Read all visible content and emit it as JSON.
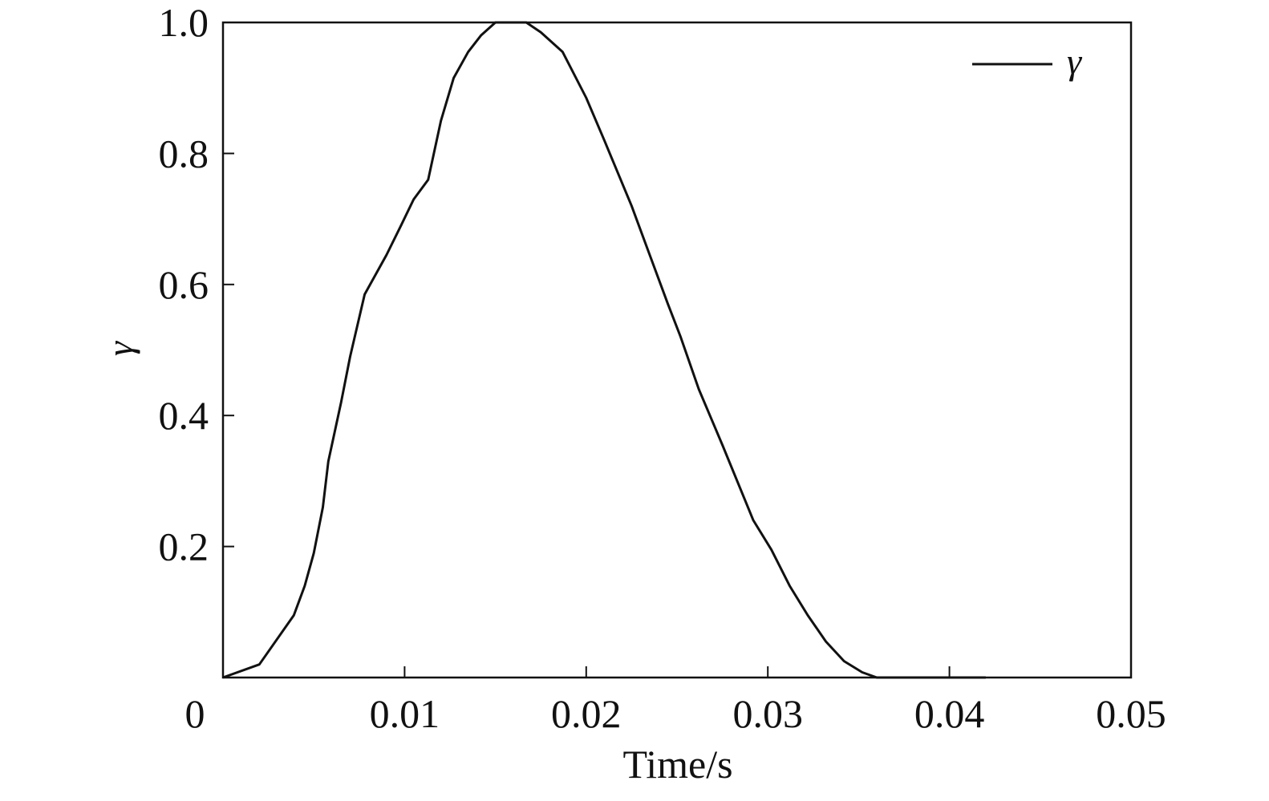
{
  "chart_data": {
    "type": "line",
    "title": "",
    "xlabel": "Time/s",
    "ylabel": "γ",
    "xlim": [
      0,
      0.05
    ],
    "ylim": [
      0,
      1.0
    ],
    "x_ticks": [
      0.01,
      0.02,
      0.03,
      0.04,
      0.05
    ],
    "x_tick_labels": [
      "0.01",
      "0.02",
      "0.03",
      "0.04",
      "0.05"
    ],
    "x_origin_label": "0",
    "y_ticks": [
      0.2,
      0.4,
      0.6,
      0.8,
      1.0
    ],
    "y_tick_labels": [
      "0.2",
      "0.4",
      "0.6",
      "0.8",
      "1.0"
    ],
    "grid": false,
    "legend_position": "top-right",
    "series": [
      {
        "name": "γ",
        "color": "#111111",
        "points": [
          [
            0.0,
            0.0
          ],
          [
            0.002,
            0.02
          ],
          [
            0.0039,
            0.095
          ],
          [
            0.0045,
            0.14
          ],
          [
            0.005,
            0.19
          ],
          [
            0.0055,
            0.26
          ],
          [
            0.0058,
            0.33
          ],
          [
            0.0065,
            0.42
          ],
          [
            0.007,
            0.49
          ],
          [
            0.0078,
            0.585
          ],
          [
            0.009,
            0.645
          ],
          [
            0.0098,
            0.69
          ],
          [
            0.0105,
            0.73
          ],
          [
            0.0113,
            0.76
          ],
          [
            0.012,
            0.85
          ],
          [
            0.0127,
            0.915
          ],
          [
            0.0135,
            0.955
          ],
          [
            0.0142,
            0.98
          ],
          [
            0.015,
            1.0
          ],
          [
            0.0167,
            1.0
          ],
          [
            0.0175,
            0.985
          ],
          [
            0.0187,
            0.955
          ],
          [
            0.02,
            0.885
          ],
          [
            0.021,
            0.82
          ],
          [
            0.0225,
            0.72
          ],
          [
            0.0235,
            0.645
          ],
          [
            0.0245,
            0.57
          ],
          [
            0.0252,
            0.52
          ],
          [
            0.0262,
            0.44
          ],
          [
            0.0275,
            0.355
          ],
          [
            0.0292,
            0.24
          ],
          [
            0.0302,
            0.195
          ],
          [
            0.0312,
            0.14
          ],
          [
            0.0322,
            0.095
          ],
          [
            0.0332,
            0.055
          ],
          [
            0.0342,
            0.025
          ],
          [
            0.0352,
            0.008
          ],
          [
            0.036,
            0.0
          ],
          [
            0.042,
            0.0
          ]
        ]
      }
    ]
  }
}
